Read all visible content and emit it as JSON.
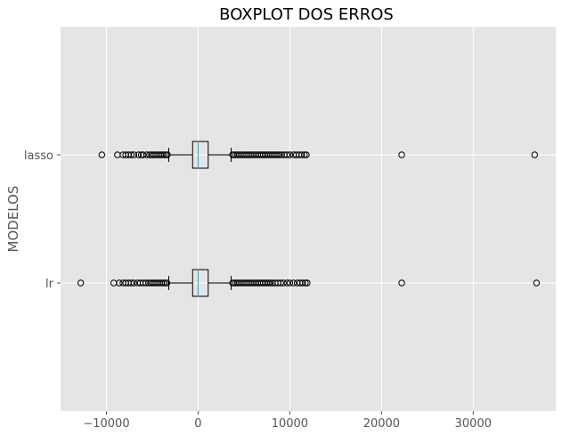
{
  "chart_data": {
    "type": "boxplot",
    "orientation": "horizontal",
    "title": "BOXPLOT DOS ERROS",
    "xlabel": "",
    "ylabel": "MODELOS",
    "xlim": [
      -15000,
      39000
    ],
    "xticks": [
      -10000,
      0,
      10000,
      20000,
      30000
    ],
    "xtick_labels": [
      "−10000",
      "0",
      "10000",
      "20000",
      "30000"
    ],
    "grid": true,
    "background_color": "#e5e5e5",
    "grid_color": "#ffffff",
    "categories": [
      "lasso",
      "lr"
    ],
    "series": [
      {
        "category": "lasso",
        "whisker_low": -3200,
        "q1": -600,
        "median": 0,
        "q3": 1100,
        "whisker_high": 3600,
        "outliers_low": [
          -10500,
          -8800,
          -8200,
          -7900,
          -7600,
          -7300,
          -7000,
          -6500,
          -6200,
          -6000,
          -5600,
          -5300,
          -5100,
          -4900,
          -4700,
          -4500,
          -4300,
          -4100,
          -3900,
          -3700,
          -3500,
          -3350
        ],
        "outliers_high": [
          3750,
          3900,
          4100,
          4300,
          4500,
          4700,
          4900,
          5100,
          5300,
          5500,
          5700,
          5900,
          6100,
          6300,
          6500,
          6700,
          6900,
          7100,
          7300,
          7500,
          7700,
          7900,
          8100,
          8300,
          8500,
          8700,
          8900,
          9100,
          9400,
          9700,
          10000,
          10400,
          10700,
          11000,
          11300,
          11600,
          11800,
          22200,
          36700
        ]
      },
      {
        "category": "lr",
        "whisker_low": -3200,
        "q1": -600,
        "median": 0,
        "q3": 1100,
        "whisker_high": 3600,
        "outliers_low": [
          -12800,
          -9200,
          -8600,
          -8200,
          -7900,
          -7600,
          -7300,
          -7000,
          -6600,
          -6300,
          -6000,
          -5700,
          -5400,
          -5200,
          -5000,
          -4800,
          -4600,
          -4400,
          -4200,
          -4000,
          -3800,
          -3600,
          -3400
        ],
        "outliers_high": [
          3750,
          3900,
          4100,
          4300,
          4500,
          4700,
          4900,
          5100,
          5300,
          5500,
          5700,
          5900,
          6100,
          6300,
          6500,
          6700,
          6900,
          7100,
          7300,
          7500,
          7700,
          7900,
          8100,
          8400,
          8700,
          9000,
          9300,
          9700,
          10000,
          10400,
          10800,
          11100,
          11400,
          11700,
          11900,
          22200,
          36900
        ]
      }
    ]
  }
}
